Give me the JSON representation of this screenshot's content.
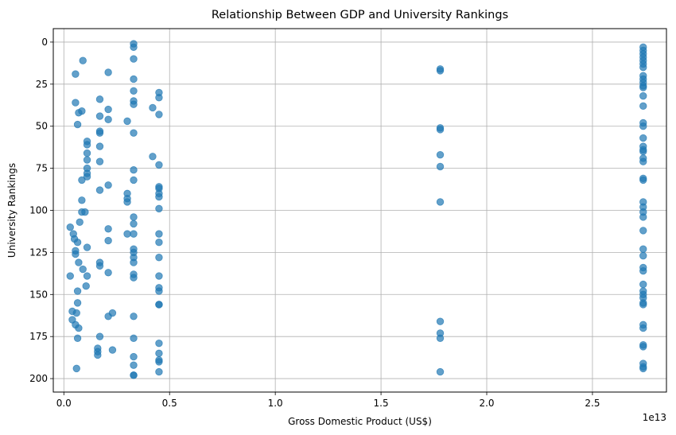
{
  "chart_data": {
    "type": "scatter",
    "title": "Relationship Between GDP and University Rankings",
    "xlabel": "Gross Domestic Product (US$)",
    "ylabel": "University Rankings",
    "x_offset_label": "1e13",
    "x_scale": 10000000000000.0,
    "xlim": [
      -0.05,
      2.85
    ],
    "ylim": [
      208,
      -8
    ],
    "y_inverted": true,
    "x_ticks": [
      0.0,
      0.5,
      1.0,
      1.5,
      2.0,
      2.5
    ],
    "x_tick_labels": [
      "0.0",
      "0.5",
      "1.0",
      "1.5",
      "2.0",
      "2.5"
    ],
    "y_ticks": [
      0,
      25,
      50,
      75,
      100,
      125,
      150,
      175,
      200
    ],
    "y_tick_labels": [
      "0",
      "25",
      "50",
      "75",
      "100",
      "125",
      "150",
      "175",
      "200"
    ],
    "grid": true,
    "marker_color": "#1f77b4",
    "marker_alpha": 0.7,
    "points": [
      [
        0.03,
        110
      ],
      [
        0.03,
        139
      ],
      [
        0.04,
        160
      ],
      [
        0.04,
        165
      ],
      [
        0.045,
        114
      ],
      [
        0.05,
        117
      ],
      [
        0.055,
        19
      ],
      [
        0.055,
        36
      ],
      [
        0.055,
        126
      ],
      [
        0.055,
        124
      ],
      [
        0.06,
        161
      ],
      [
        0.055,
        168
      ],
      [
        0.06,
        194
      ],
      [
        0.065,
        49
      ],
      [
        0.065,
        119
      ],
      [
        0.065,
        148
      ],
      [
        0.065,
        155
      ],
      [
        0.065,
        176
      ],
      [
        0.07,
        42
      ],
      [
        0.07,
        131
      ],
      [
        0.07,
        170
      ],
      [
        0.075,
        107
      ],
      [
        0.09,
        11
      ],
      [
        0.085,
        41
      ],
      [
        0.085,
        82
      ],
      [
        0.085,
        94
      ],
      [
        0.085,
        101
      ],
      [
        0.09,
        135
      ],
      [
        0.1,
        101
      ],
      [
        0.105,
        145
      ],
      [
        0.11,
        59
      ],
      [
        0.11,
        61
      ],
      [
        0.11,
        66
      ],
      [
        0.11,
        70
      ],
      [
        0.11,
        75
      ],
      [
        0.11,
        78
      ],
      [
        0.11,
        80
      ],
      [
        0.11,
        122
      ],
      [
        0.11,
        139
      ],
      [
        0.17,
        34
      ],
      [
        0.17,
        44
      ],
      [
        0.17,
        53
      ],
      [
        0.17,
        54
      ],
      [
        0.17,
        62
      ],
      [
        0.17,
        71
      ],
      [
        0.17,
        88
      ],
      [
        0.17,
        131
      ],
      [
        0.17,
        133
      ],
      [
        0.17,
        175
      ],
      [
        0.16,
        182
      ],
      [
        0.16,
        184
      ],
      [
        0.16,
        186
      ],
      [
        0.21,
        18
      ],
      [
        0.21,
        40
      ],
      [
        0.21,
        46
      ],
      [
        0.21,
        85
      ],
      [
        0.21,
        111
      ],
      [
        0.21,
        118
      ],
      [
        0.21,
        137
      ],
      [
        0.21,
        163
      ],
      [
        0.23,
        161
      ],
      [
        0.23,
        183
      ],
      [
        0.3,
        47
      ],
      [
        0.3,
        90
      ],
      [
        0.3,
        93
      ],
      [
        0.3,
        95
      ],
      [
        0.3,
        114
      ],
      [
        0.33,
        1
      ],
      [
        0.33,
        3
      ],
      [
        0.33,
        10
      ],
      [
        0.33,
        22
      ],
      [
        0.33,
        29
      ],
      [
        0.33,
        35
      ],
      [
        0.33,
        37
      ],
      [
        0.33,
        54
      ],
      [
        0.33,
        76
      ],
      [
        0.33,
        82
      ],
      [
        0.33,
        104
      ],
      [
        0.33,
        108
      ],
      [
        0.33,
        114
      ],
      [
        0.33,
        123
      ],
      [
        0.33,
        125
      ],
      [
        0.33,
        128
      ],
      [
        0.33,
        131
      ],
      [
        0.33,
        138
      ],
      [
        0.33,
        140
      ],
      [
        0.33,
        163
      ],
      [
        0.33,
        176
      ],
      [
        0.33,
        187
      ],
      [
        0.33,
        192
      ],
      [
        0.33,
        198
      ],
      [
        0.33,
        198
      ],
      [
        0.42,
        39
      ],
      [
        0.42,
        68
      ],
      [
        0.45,
        30
      ],
      [
        0.45,
        33
      ],
      [
        0.45,
        43
      ],
      [
        0.45,
        73
      ],
      [
        0.45,
        86
      ],
      [
        0.45,
        87
      ],
      [
        0.45,
        90
      ],
      [
        0.45,
        92
      ],
      [
        0.45,
        99
      ],
      [
        0.45,
        114
      ],
      [
        0.45,
        119
      ],
      [
        0.45,
        128
      ],
      [
        0.45,
        139
      ],
      [
        0.45,
        146
      ],
      [
        0.45,
        148
      ],
      [
        0.45,
        156
      ],
      [
        0.45,
        156
      ],
      [
        0.45,
        179
      ],
      [
        0.45,
        185
      ],
      [
        0.45,
        189
      ],
      [
        0.45,
        190
      ],
      [
        0.45,
        196
      ],
      [
        1.78,
        16
      ],
      [
        1.78,
        17
      ],
      [
        1.78,
        51
      ],
      [
        1.78,
        52
      ],
      [
        1.78,
        67
      ],
      [
        1.78,
        74
      ],
      [
        1.78,
        95
      ],
      [
        1.78,
        166
      ],
      [
        1.78,
        173
      ],
      [
        1.78,
        176
      ],
      [
        1.78,
        196
      ],
      [
        2.74,
        3
      ],
      [
        2.74,
        5
      ],
      [
        2.74,
        7
      ],
      [
        2.74,
        9
      ],
      [
        2.74,
        11
      ],
      [
        2.74,
        13
      ],
      [
        2.74,
        15
      ],
      [
        2.74,
        20
      ],
      [
        2.74,
        22
      ],
      [
        2.74,
        24
      ],
      [
        2.74,
        26
      ],
      [
        2.74,
        27
      ],
      [
        2.74,
        32
      ],
      [
        2.74,
        38
      ],
      [
        2.74,
        48
      ],
      [
        2.74,
        50
      ],
      [
        2.74,
        57
      ],
      [
        2.74,
        62
      ],
      [
        2.74,
        64
      ],
      [
        2.74,
        65
      ],
      [
        2.74,
        69
      ],
      [
        2.74,
        71
      ],
      [
        2.74,
        81
      ],
      [
        2.74,
        82
      ],
      [
        2.74,
        95
      ],
      [
        2.74,
        98
      ],
      [
        2.74,
        101
      ],
      [
        2.74,
        104
      ],
      [
        2.74,
        112
      ],
      [
        2.74,
        123
      ],
      [
        2.74,
        127
      ],
      [
        2.74,
        134
      ],
      [
        2.74,
        136
      ],
      [
        2.74,
        144
      ],
      [
        2.74,
        148
      ],
      [
        2.74,
        150
      ],
      [
        2.74,
        152
      ],
      [
        2.74,
        155
      ],
      [
        2.74,
        156
      ],
      [
        2.74,
        168
      ],
      [
        2.74,
        170
      ],
      [
        2.74,
        180
      ],
      [
        2.74,
        181
      ],
      [
        2.74,
        191
      ],
      [
        2.74,
        193
      ],
      [
        2.74,
        194
      ]
    ]
  }
}
